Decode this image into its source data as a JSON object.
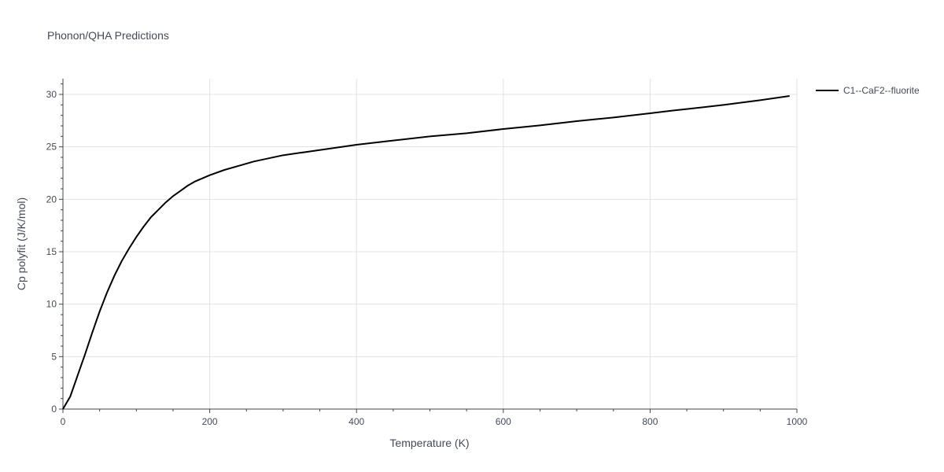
{
  "chart_data": {
    "type": "line",
    "title": "Phonon/QHA Predictions",
    "xlabel": "Temperature (K)",
    "ylabel": "Cp polyfit (J/K/mol)",
    "xlim": [
      0,
      1000
    ],
    "ylim": [
      0,
      31.5
    ],
    "x_ticks": [
      0,
      200,
      400,
      600,
      800,
      1000
    ],
    "y_ticks": [
      0,
      5,
      10,
      15,
      20,
      25,
      30
    ],
    "x_tick_labels": [
      "0",
      "200",
      "400",
      "600",
      "800",
      "1000"
    ],
    "y_tick_labels": [
      "0",
      "5",
      "10",
      "15",
      "20",
      "25",
      "30"
    ],
    "grid": true,
    "legend_position": "top-right-outside",
    "series": [
      {
        "name": "C1--CaF2--fluorite",
        "color": "#000000",
        "x": [
          0,
          10,
          20,
          30,
          40,
          50,
          60,
          70,
          80,
          90,
          100,
          110,
          120,
          130,
          140,
          150,
          160,
          170,
          180,
          190,
          200,
          220,
          240,
          260,
          280,
          300,
          330,
          360,
          400,
          450,
          500,
          550,
          600,
          650,
          700,
          750,
          800,
          830,
          850,
          900,
          950,
          990
        ],
        "y": [
          0,
          1.2,
          3.2,
          5.2,
          7.3,
          9.3,
          11.1,
          12.7,
          14.1,
          15.3,
          16.4,
          17.4,
          18.3,
          19.0,
          19.7,
          20.3,
          20.8,
          21.3,
          21.7,
          22.0,
          22.3,
          22.8,
          23.2,
          23.6,
          23.9,
          24.2,
          24.5,
          24.8,
          25.2,
          25.6,
          26.0,
          26.3,
          26.7,
          27.05,
          27.45,
          27.8,
          28.2,
          28.45,
          28.6,
          29.0,
          29.45,
          29.85
        ]
      }
    ]
  }
}
